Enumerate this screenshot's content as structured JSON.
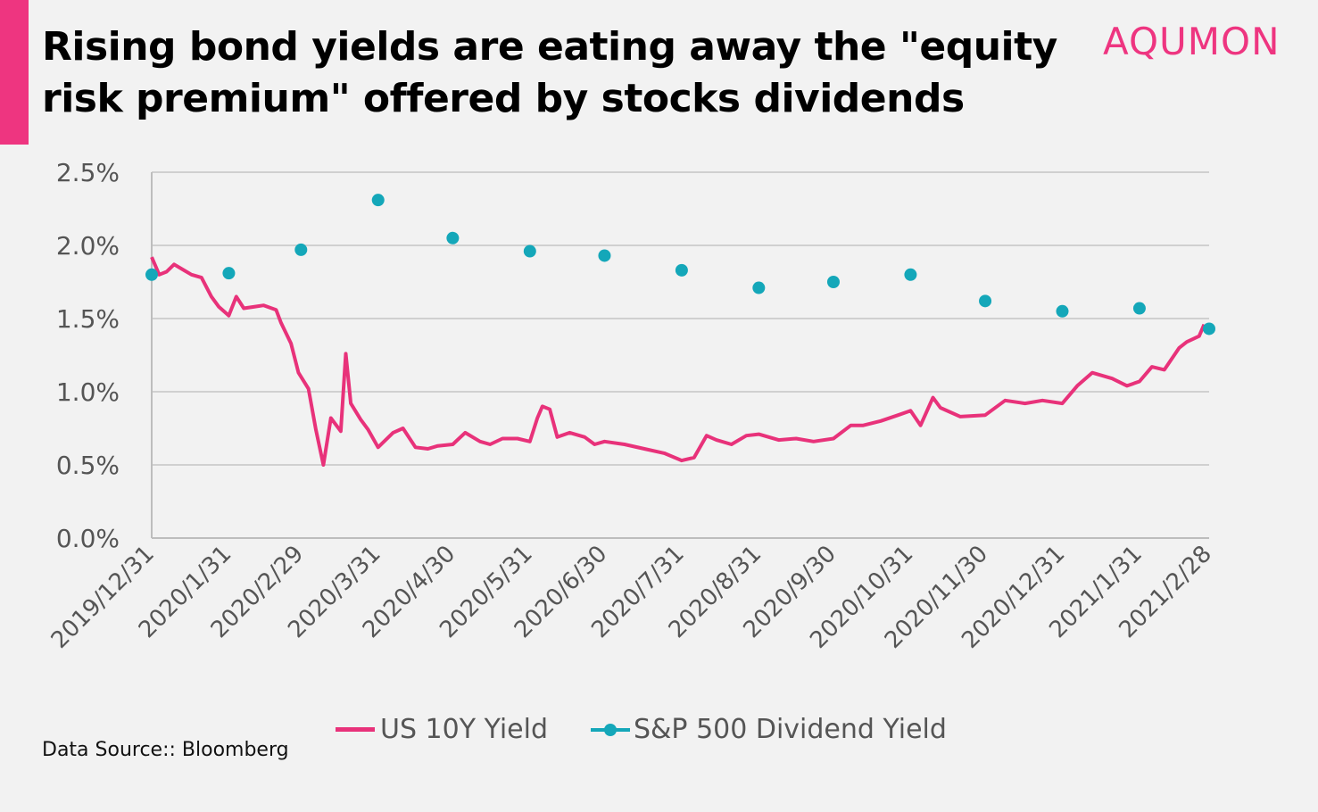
{
  "title": "Rising bond yields are eating away the \"equity risk premium\" offered by stocks dividends",
  "brand": "AQUMON",
  "source": "Data Source:: Bloomberg",
  "colors": {
    "accent": "#ee3580",
    "bond_line": "#e8327a",
    "dividend_dots": "#14a7b9",
    "grid": "#d0d0d0"
  },
  "chart_data": {
    "type": "line",
    "ylim": [
      0,
      2.5
    ],
    "y_ticks": [
      "0.0%",
      "0.5%",
      "1.0%",
      "1.5%",
      "2.0%",
      "2.5%"
    ],
    "x_ticks": [
      "2019/12/31",
      "2020/1/31",
      "2020/2/29",
      "2020/3/31",
      "2020/4/30",
      "2020/5/31",
      "2020/6/30",
      "2020/7/31",
      "2020/8/31",
      "2020/9/30",
      "2020/10/31",
      "2020/11/30",
      "2020/12/31",
      "2021/1/31",
      "2021/2/28"
    ],
    "grid": "horizontal",
    "legend_position": "bottom",
    "series": [
      {
        "name": "US 10Y Yield",
        "style": "line",
        "x": [
          "2019-12-31",
          "2020-01-03",
          "2020-01-06",
          "2020-01-09",
          "2020-01-13",
          "2020-01-16",
          "2020-01-20",
          "2020-01-24",
          "2020-01-27",
          "2020-01-31",
          "2020-02-03",
          "2020-02-06",
          "2020-02-10",
          "2020-02-14",
          "2020-02-19",
          "2020-02-21",
          "2020-02-25",
          "2020-02-28",
          "2020-03-03",
          "2020-03-06",
          "2020-03-09",
          "2020-03-12",
          "2020-03-16",
          "2020-03-18",
          "2020-03-20",
          "2020-03-24",
          "2020-03-27",
          "2020-03-31",
          "2020-04-06",
          "2020-04-10",
          "2020-04-15",
          "2020-04-20",
          "2020-04-24",
          "2020-04-30",
          "2020-05-05",
          "2020-05-11",
          "2020-05-15",
          "2020-05-20",
          "2020-05-26",
          "2020-05-31",
          "2020-06-03",
          "2020-06-05",
          "2020-06-08",
          "2020-06-11",
          "2020-06-16",
          "2020-06-22",
          "2020-06-26",
          "2020-06-30",
          "2020-07-08",
          "2020-07-16",
          "2020-07-24",
          "2020-07-31",
          "2020-08-05",
          "2020-08-10",
          "2020-08-14",
          "2020-08-20",
          "2020-08-26",
          "2020-08-31",
          "2020-09-08",
          "2020-09-15",
          "2020-09-22",
          "2020-09-30",
          "2020-10-07",
          "2020-10-12",
          "2020-10-19",
          "2020-10-26",
          "2020-10-31",
          "2020-11-04",
          "2020-11-09",
          "2020-11-12",
          "2020-11-20",
          "2020-11-30",
          "2020-12-08",
          "2020-12-16",
          "2020-12-23",
          "2020-12-31",
          "2021-01-06",
          "2021-01-12",
          "2021-01-20",
          "2021-01-26",
          "2021-01-31",
          "2021-02-05",
          "2021-02-10",
          "2021-02-16",
          "2021-02-19",
          "2021-02-24",
          "2021-02-26"
        ],
        "values": [
          1.92,
          1.8,
          1.82,
          1.87,
          1.83,
          1.8,
          1.78,
          1.65,
          1.58,
          1.52,
          1.65,
          1.57,
          1.58,
          1.59,
          1.56,
          1.47,
          1.33,
          1.13,
          1.02,
          0.74,
          0.5,
          0.82,
          0.73,
          1.26,
          0.92,
          0.81,
          0.74,
          0.62,
          0.72,
          0.75,
          0.62,
          0.61,
          0.63,
          0.64,
          0.72,
          0.66,
          0.64,
          0.68,
          0.68,
          0.66,
          0.82,
          0.9,
          0.88,
          0.69,
          0.72,
          0.69,
          0.64,
          0.66,
          0.64,
          0.61,
          0.58,
          0.53,
          0.55,
          0.7,
          0.67,
          0.64,
          0.7,
          0.71,
          0.67,
          0.68,
          0.66,
          0.68,
          0.77,
          0.77,
          0.8,
          0.84,
          0.87,
          0.77,
          0.96,
          0.89,
          0.83,
          0.84,
          0.94,
          0.92,
          0.94,
          0.92,
          1.04,
          1.13,
          1.09,
          1.04,
          1.07,
          1.17,
          1.15,
          1.3,
          1.34,
          1.38,
          1.46
        ]
      },
      {
        "name": "S&P 500 Dividend Yield",
        "style": "markers",
        "x": [
          "2019-12-31",
          "2020-01-31",
          "2020-02-29",
          "2020-03-31",
          "2020-04-30",
          "2020-05-31",
          "2020-06-30",
          "2020-07-31",
          "2020-08-31",
          "2020-09-30",
          "2020-10-31",
          "2020-11-30",
          "2020-12-31",
          "2021-01-31",
          "2021-02-28"
        ],
        "values": [
          1.8,
          1.81,
          1.97,
          2.31,
          2.05,
          1.96,
          1.93,
          1.83,
          1.71,
          1.75,
          1.8,
          1.62,
          1.55,
          1.57,
          1.43
        ]
      }
    ]
  }
}
